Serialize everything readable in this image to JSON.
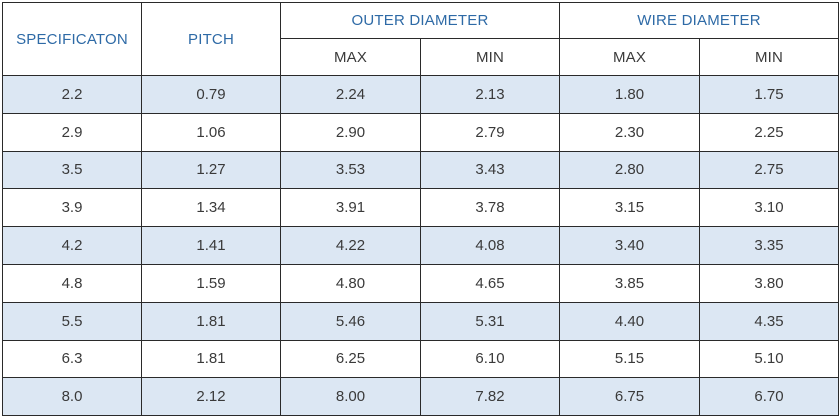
{
  "headers": {
    "specification": "SPECIFICATON",
    "pitch": "PITCH",
    "outer_diameter": "OUTER DIAMETER",
    "wire_diameter": "WIRE DIAMETER",
    "od_max": "MAX",
    "od_min": "MIN",
    "wd_max": "MAX",
    "wd_min": "MIN"
  },
  "rows": [
    {
      "spec": "2.2",
      "pitch": "0.79",
      "od_max": "2.24",
      "od_min": "2.13",
      "wd_max": "1.80",
      "wd_min": "1.75"
    },
    {
      "spec": "2.9",
      "pitch": "1.06",
      "od_max": "2.90",
      "od_min": "2.79",
      "wd_max": "2.30",
      "wd_min": "2.25"
    },
    {
      "spec": "3.5",
      "pitch": "1.27",
      "od_max": "3.53",
      "od_min": "3.43",
      "wd_max": "2.80",
      "wd_min": "2.75"
    },
    {
      "spec": "3.9",
      "pitch": "1.34",
      "od_max": "3.91",
      "od_min": "3.78",
      "wd_max": "3.15",
      "wd_min": "3.10"
    },
    {
      "spec": "4.2",
      "pitch": "1.41",
      "od_max": "4.22",
      "od_min": "4.08",
      "wd_max": "3.40",
      "wd_min": "3.35"
    },
    {
      "spec": "4.8",
      "pitch": "1.59",
      "od_max": "4.80",
      "od_min": "4.65",
      "wd_max": "3.85",
      "wd_min": "3.80"
    },
    {
      "spec": "5.5",
      "pitch": "1.81",
      "od_max": "5.46",
      "od_min": "5.31",
      "wd_max": "4.40",
      "wd_min": "4.35"
    },
    {
      "spec": "6.3",
      "pitch": "1.81",
      "od_max": "6.25",
      "od_min": "6.10",
      "wd_max": "5.15",
      "wd_min": "5.10"
    },
    {
      "spec": "8.0",
      "pitch": "2.12",
      "od_max": "8.00",
      "od_min": "7.82",
      "wd_max": "6.75",
      "wd_min": "6.70"
    }
  ],
  "colors": {
    "header_text": "#2e6aa6",
    "shaded_row": "#dce7f3",
    "body_text": "#3a3a3a",
    "border": "#2a2a2a"
  }
}
